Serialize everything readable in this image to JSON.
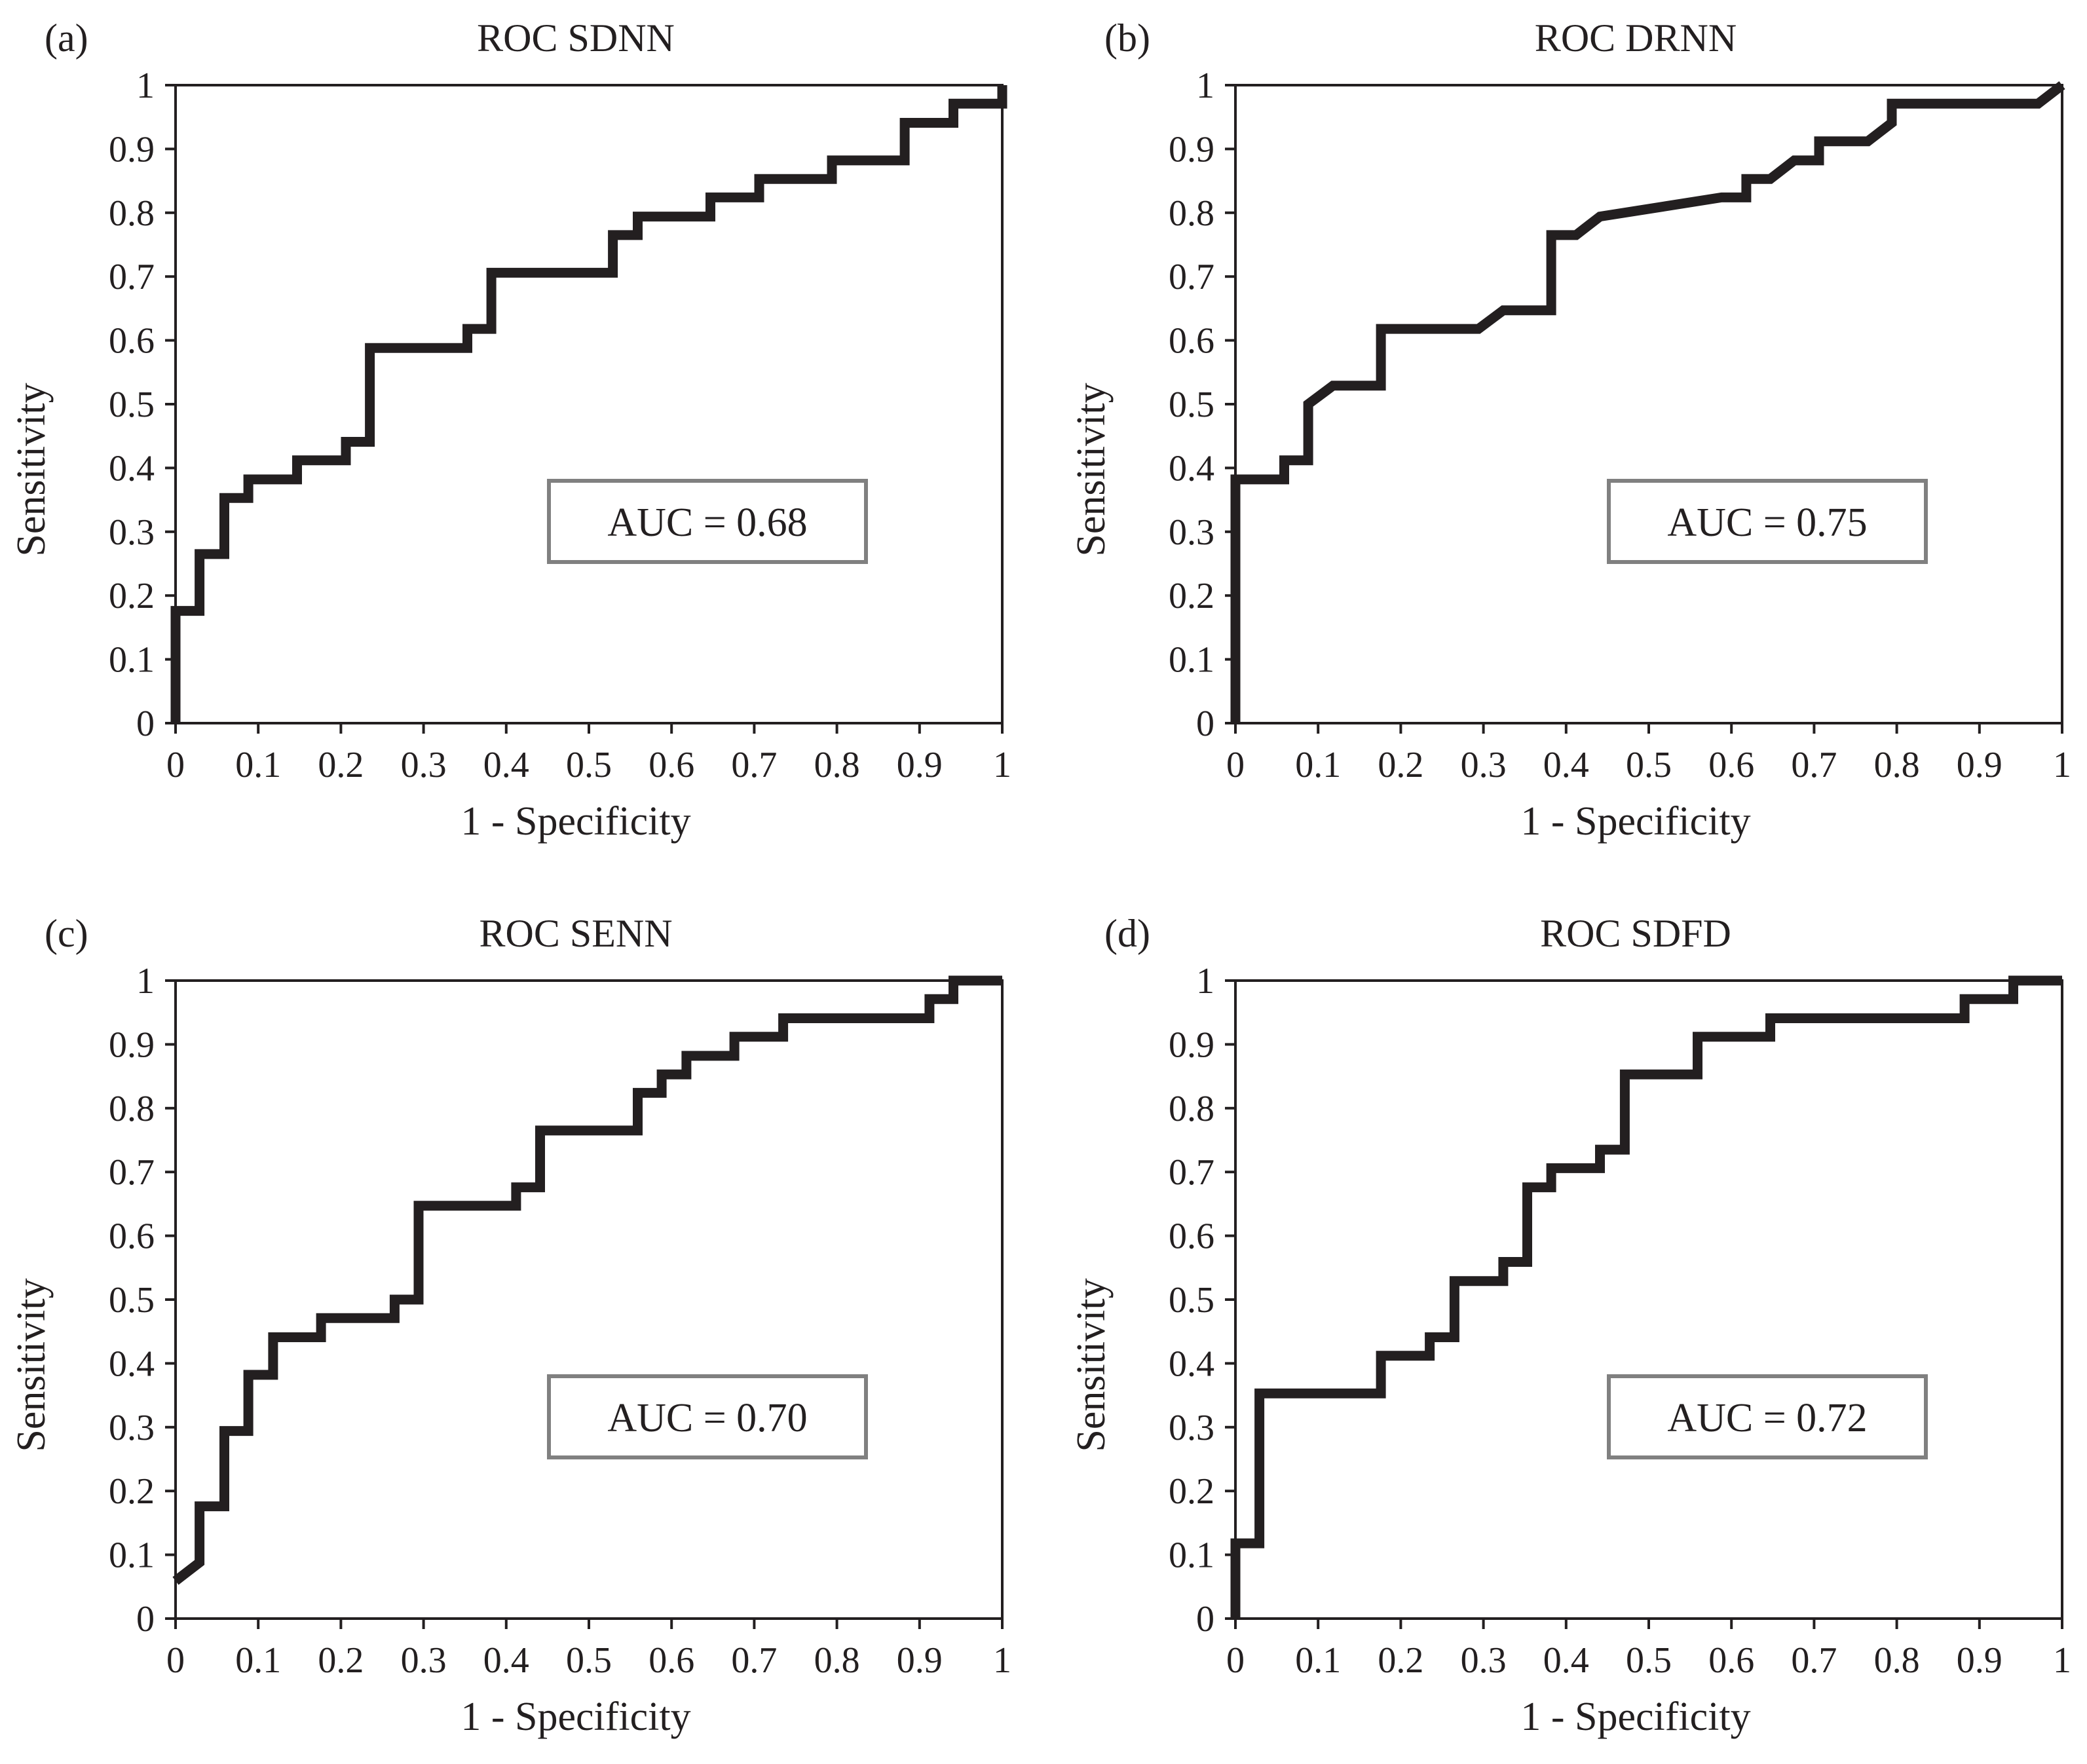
{
  "chart_data": [
    {
      "type": "line",
      "panel": "(a)",
      "title": "ROC SDNN",
      "xlabel": "1 - Specificity",
      "ylabel": "Sensitivity",
      "xlim": [
        0,
        1
      ],
      "ylim": [
        0,
        1
      ],
      "xticks": [
        "0",
        "0.1",
        "0.2",
        "0.3",
        "0.4",
        "0.5",
        "0.6",
        "0.7",
        "0.8",
        "0.9",
        "1"
      ],
      "yticks": [
        "0",
        "0.1",
        "0.2",
        "0.3",
        "0.4",
        "0.5",
        "0.6",
        "0.7",
        "0.8",
        "0.9",
        "1"
      ],
      "auc_label": "AUC = 0.68",
      "grid": false,
      "series": [
        {
          "name": "ROC SDNN",
          "x": [
            0,
            0,
            0.029,
            0.029,
            0.059,
            0.059,
            0.088,
            0.088,
            0.147,
            0.147,
            0.206,
            0.206,
            0.235,
            0.235,
            0.353,
            0.353,
            0.382,
            0.382,
            0.529,
            0.529,
            0.559,
            0.559,
            0.647,
            0.647,
            0.706,
            0.706,
            0.794,
            0.794,
            0.882,
            0.882,
            0.941,
            0.941,
            1,
            1
          ],
          "y": [
            0,
            0.176,
            0.176,
            0.265,
            0.265,
            0.353,
            0.353,
            0.382,
            0.382,
            0.412,
            0.412,
            0.441,
            0.441,
            0.588,
            0.588,
            0.618,
            0.618,
            0.706,
            0.706,
            0.765,
            0.765,
            0.794,
            0.794,
            0.824,
            0.824,
            0.853,
            0.853,
            0.882,
            0.882,
            0.941,
            0.941,
            0.971,
            0.971,
            1
          ]
        }
      ]
    },
    {
      "type": "line",
      "panel": "(b)",
      "title": "ROC DRNN",
      "xlabel": "1 - Specificity",
      "ylabel": "Sensitivity",
      "xlim": [
        0,
        1
      ],
      "ylim": [
        0,
        1
      ],
      "xticks": [
        "0",
        "0.1",
        "0.2",
        "0.3",
        "0.4",
        "0.5",
        "0.6",
        "0.7",
        "0.8",
        "0.9",
        "1"
      ],
      "yticks": [
        "0",
        "0.1",
        "0.2",
        "0.3",
        "0.4",
        "0.5",
        "0.6",
        "0.7",
        "0.8",
        "0.9",
        "1"
      ],
      "auc_label": "AUC = 0.75",
      "grid": false,
      "series": [
        {
          "name": "ROC DRNN",
          "x": [
            0,
            0,
            0.059,
            0.059,
            0.088,
            0.088,
            0.118,
            0.176,
            0.176,
            0.294,
            0.324,
            0.382,
            0.382,
            0.412,
            0.441,
            0.588,
            0.618,
            0.618,
            0.647,
            0.676,
            0.706,
            0.706,
            0.765,
            0.794,
            0.794,
            0.971,
            1
          ],
          "y": [
            0,
            0.382,
            0.382,
            0.412,
            0.412,
            0.5,
            0.529,
            0.529,
            0.618,
            0.618,
            0.647,
            0.647,
            0.765,
            0.765,
            0.794,
            0.824,
            0.824,
            0.853,
            0.853,
            0.882,
            0.882,
            0.912,
            0.912,
            0.941,
            0.971,
            0.971,
            1
          ]
        }
      ]
    },
    {
      "type": "line",
      "panel": "(c)",
      "title": "ROC SENN",
      "xlabel": "1 - Specificity",
      "ylabel": "Sensitivity",
      "xlim": [
        0,
        1
      ],
      "ylim": [
        0,
        1
      ],
      "xticks": [
        "0",
        "0.1",
        "0.2",
        "0.3",
        "0.4",
        "0.5",
        "0.6",
        "0.7",
        "0.8",
        "0.9",
        "1"
      ],
      "yticks": [
        "0",
        "0.1",
        "0.2",
        "0.3",
        "0.4",
        "0.5",
        "0.6",
        "0.7",
        "0.8",
        "0.9",
        "1"
      ],
      "auc_label": "AUC = 0.70",
      "grid": false,
      "series": [
        {
          "name": "ROC SENN",
          "x": [
            0,
            0,
            0.029,
            0.029,
            0.059,
            0.059,
            0.088,
            0.088,
            0.118,
            0.118,
            0.176,
            0.176,
            0.265,
            0.265,
            0.294,
            0.294,
            0.412,
            0.412,
            0.441,
            0.441,
            0.559,
            0.559,
            0.588,
            0.588,
            0.618,
            0.618,
            0.676,
            0.676,
            0.735,
            0.735,
            0.912,
            0.912,
            0.941,
            0.941,
            1
          ],
          "y": [
            0.059,
            0.059,
            0.088,
            0.176,
            0.176,
            0.294,
            0.294,
            0.382,
            0.382,
            0.441,
            0.441,
            0.471,
            0.471,
            0.5,
            0.5,
            0.647,
            0.647,
            0.676,
            0.676,
            0.765,
            0.765,
            0.824,
            0.824,
            0.853,
            0.853,
            0.882,
            0.882,
            0.912,
            0.912,
            0.941,
            0.941,
            0.971,
            0.971,
            1,
            1
          ]
        }
      ]
    },
    {
      "type": "line",
      "panel": "(d)",
      "title": "ROC SDFD",
      "xlabel": "1 - Specificity",
      "ylabel": "Sensitivity",
      "xlim": [
        0,
        1
      ],
      "ylim": [
        0,
        1
      ],
      "xticks": [
        "0",
        "0.1",
        "0.2",
        "0.3",
        "0.4",
        "0.5",
        "0.6",
        "0.7",
        "0.8",
        "0.9",
        "1"
      ],
      "yticks": [
        "0",
        "0.1",
        "0.2",
        "0.3",
        "0.4",
        "0.5",
        "0.6",
        "0.7",
        "0.8",
        "0.9",
        "1"
      ],
      "auc_label": "AUC = 0.72",
      "grid": false,
      "series": [
        {
          "name": "ROC SDFD",
          "x": [
            0,
            0,
            0.029,
            0.029,
            0.176,
            0.176,
            0.235,
            0.235,
            0.265,
            0.265,
            0.324,
            0.324,
            0.353,
            0.353,
            0.382,
            0.382,
            0.441,
            0.441,
            0.471,
            0.471,
            0.559,
            0.559,
            0.647,
            0.647,
            0.882,
            0.882,
            0.941,
            0.941,
            1
          ],
          "y": [
            0,
            0.118,
            0.118,
            0.353,
            0.353,
            0.412,
            0.412,
            0.441,
            0.441,
            0.529,
            0.529,
            0.559,
            0.559,
            0.676,
            0.676,
            0.706,
            0.706,
            0.735,
            0.735,
            0.853,
            0.853,
            0.912,
            0.912,
            0.941,
            0.941,
            0.971,
            0.971,
            1,
            1
          ]
        }
      ]
    }
  ],
  "colors": {
    "line": "#231f20",
    "axis": "#231f20",
    "auc_box_border": "#808080",
    "text": "#231f20"
  }
}
